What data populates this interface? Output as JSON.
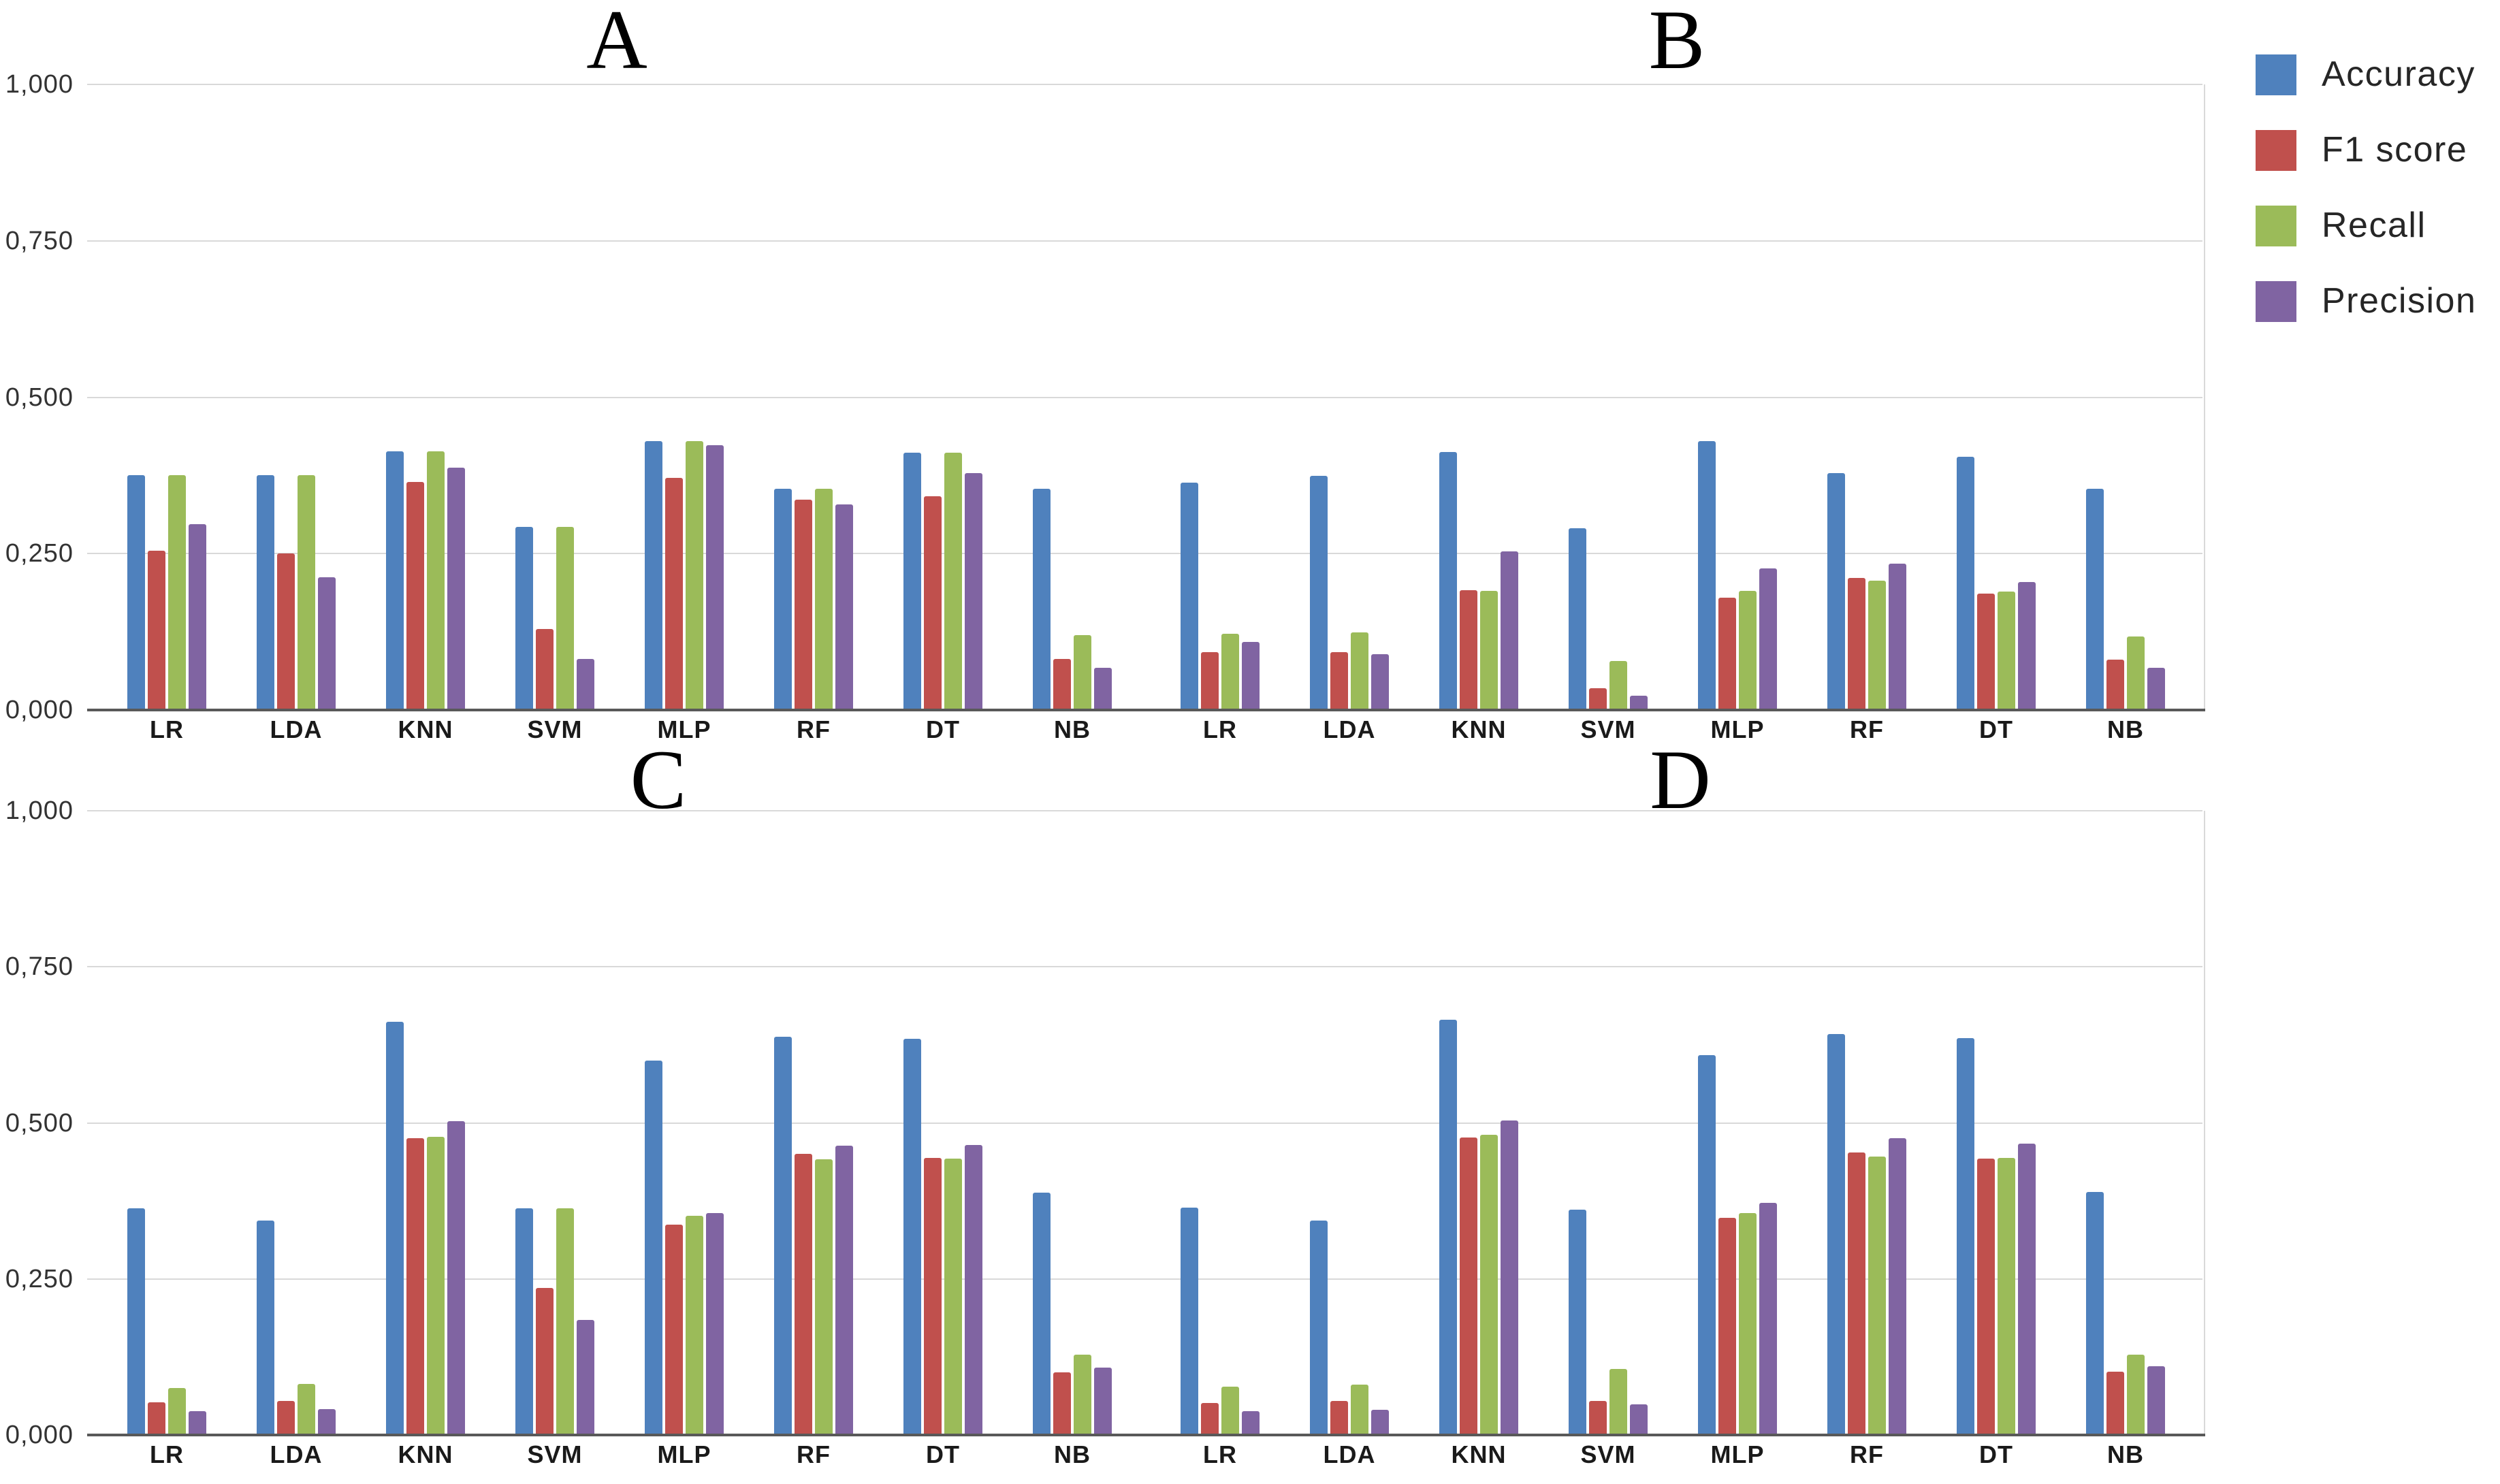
{
  "page": {
    "background": "#ffffff"
  },
  "colors": {
    "grid": "#d9d9d9",
    "axis": "#595959",
    "text": "#1a1a1a",
    "accuracy": "#4F81BD",
    "f1_score": "#C0504D",
    "recall": "#9BBB59",
    "precision": "#8064A2"
  },
  "y_axis": {
    "tick_labels": [
      "1,000",
      "0,750",
      "0,500",
      "0,250",
      "0,000"
    ],
    "tick_values": [
      1.0,
      0.75,
      0.5,
      0.25,
      0.0
    ]
  },
  "categories": [
    "LR",
    "LDA",
    "KNN",
    "SVM",
    "MLP",
    "RF",
    "DT",
    "NB"
  ],
  "legend": {
    "position": "top-right",
    "items": [
      {
        "label": "Accuracy",
        "color": "#4F81BD"
      },
      {
        "label": "F1 score",
        "color": "#C0504D"
      },
      {
        "label": "Recall",
        "color": "#9BBB59"
      },
      {
        "label": "Precision",
        "color": "#8064A2"
      }
    ]
  },
  "chart_data": [
    {
      "type": "bar",
      "title": "A",
      "categories": [
        "LR",
        "LDA",
        "KNN",
        "SVM",
        "MLP",
        "RF",
        "DT",
        "NB"
      ],
      "ylim": [
        0,
        1
      ],
      "yticks": [
        0,
        0.25,
        0.5,
        0.75,
        1.0
      ],
      "grid": true,
      "legend_position": "outside-right",
      "series": [
        {
          "name": "Accuracy",
          "color": "#4F81BD",
          "values": [
            0.375,
            0.375,
            0.413,
            0.293,
            0.43,
            0.354,
            0.411,
            0.354
          ]
        },
        {
          "name": "F1 score",
          "color": "#C0504D",
          "values": [
            0.255,
            0.25,
            0.364,
            0.13,
            0.371,
            0.336,
            0.342,
            0.082
          ]
        },
        {
          "name": "Recall",
          "color": "#9BBB59",
          "values": [
            0.375,
            0.375,
            0.413,
            0.293,
            0.43,
            0.354,
            0.411,
            0.12
          ]
        },
        {
          "name": "Precision",
          "color": "#8064A2",
          "values": [
            0.297,
            0.212,
            0.387,
            0.082,
            0.423,
            0.329,
            0.379,
            0.068
          ]
        }
      ]
    },
    {
      "type": "bar",
      "title": "B",
      "categories": [
        "LR",
        "LDA",
        "KNN",
        "SVM",
        "MLP",
        "RF",
        "DT",
        "NB"
      ],
      "ylim": [
        0,
        1
      ],
      "yticks": [
        0,
        0.25,
        0.5,
        0.75,
        1.0
      ],
      "grid": true,
      "legend_position": "outside-right",
      "series": [
        {
          "name": "Accuracy",
          "color": "#4F81BD",
          "values": [
            0.363,
            0.374,
            0.412,
            0.291,
            0.43,
            0.379,
            0.405,
            0.354
          ]
        },
        {
          "name": "F1 score",
          "color": "#C0504D",
          "values": [
            0.093,
            0.092,
            0.192,
            0.035,
            0.18,
            0.211,
            0.186,
            0.081
          ]
        },
        {
          "name": "Recall",
          "color": "#9BBB59",
          "values": [
            0.122,
            0.124,
            0.19,
            0.078,
            0.19,
            0.207,
            0.189,
            0.118
          ]
        },
        {
          "name": "Precision",
          "color": "#8064A2",
          "values": [
            0.109,
            0.089,
            0.254,
            0.023,
            0.226,
            0.234,
            0.205,
            0.068
          ]
        }
      ]
    },
    {
      "type": "bar",
      "title": "C",
      "categories": [
        "LR",
        "LDA",
        "KNN",
        "SVM",
        "MLP",
        "RF",
        "DT",
        "NB"
      ],
      "ylim": [
        0,
        1
      ],
      "yticks": [
        0,
        0.25,
        0.5,
        0.75,
        1.0
      ],
      "grid": true,
      "legend_position": "outside-right",
      "series": [
        {
          "name": "Accuracy",
          "color": "#4F81BD",
          "values": [
            0.363,
            0.343,
            0.662,
            0.363,
            0.6,
            0.638,
            0.635,
            0.388
          ]
        },
        {
          "name": "F1 score",
          "color": "#C0504D",
          "values": [
            0.052,
            0.055,
            0.476,
            0.236,
            0.337,
            0.45,
            0.444,
            0.1
          ]
        },
        {
          "name": "Recall",
          "color": "#9BBB59",
          "values": [
            0.075,
            0.082,
            0.478,
            0.363,
            0.351,
            0.442,
            0.443,
            0.129
          ]
        },
        {
          "name": "Precision",
          "color": "#8064A2",
          "values": [
            0.038,
            0.041,
            0.503,
            0.184,
            0.355,
            0.463,
            0.465,
            0.108
          ]
        }
      ]
    },
    {
      "type": "bar",
      "title": "D",
      "categories": [
        "LR",
        "LDA",
        "KNN",
        "SVM",
        "MLP",
        "RF",
        "DT",
        "NB"
      ],
      "ylim": [
        0,
        1
      ],
      "yticks": [
        0,
        0.25,
        0.5,
        0.75,
        1.0
      ],
      "grid": true,
      "legend_position": "outside-right",
      "series": [
        {
          "name": "Accuracy",
          "color": "#4F81BD",
          "values": [
            0.364,
            0.343,
            0.665,
            0.361,
            0.609,
            0.642,
            0.636,
            0.389
          ]
        },
        {
          "name": "F1 score",
          "color": "#C0504D",
          "values": [
            0.051,
            0.054,
            0.477,
            0.054,
            0.348,
            0.453,
            0.443,
            0.101
          ]
        },
        {
          "name": "Recall",
          "color": "#9BBB59",
          "values": [
            0.077,
            0.081,
            0.481,
            0.106,
            0.356,
            0.446,
            0.444,
            0.129
          ]
        },
        {
          "name": "Precision",
          "color": "#8064A2",
          "values": [
            0.038,
            0.04,
            0.504,
            0.049,
            0.372,
            0.475,
            0.467,
            0.11
          ]
        }
      ]
    }
  ]
}
